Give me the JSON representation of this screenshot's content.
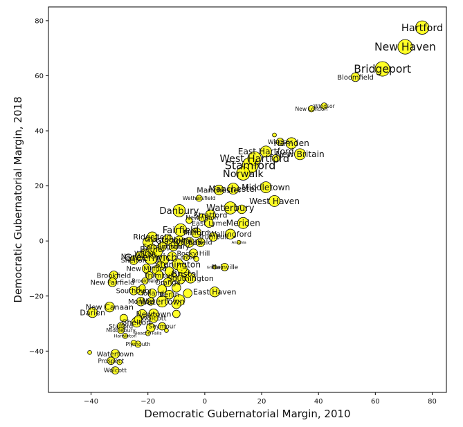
{
  "chart_data": {
    "type": "scatter",
    "title": "",
    "xlabel": "Democratic Gubernatorial Margin, 2010",
    "ylabel": "Democratic Gubernatorial Margin, 2018",
    "xlim": [
      -55,
      85
    ],
    "ylim": [
      -55,
      85
    ],
    "xticks": [
      -40,
      -20,
      0,
      20,
      40,
      60,
      80
    ],
    "yticks": [
      -40,
      -20,
      0,
      20,
      40,
      60,
      80
    ],
    "grid": false,
    "marker_color": "#ffff00",
    "edge_color": "#000000",
    "points": [
      {
        "x": 76.5,
        "y": 77.5,
        "size": 10,
        "label": "Hartford"
      },
      {
        "x": 70.5,
        "y": 70.5,
        "size": 11,
        "label": "New Haven"
      },
      {
        "x": 62.5,
        "y": 62.5,
        "size": 11,
        "label": "Bridgeport"
      },
      {
        "x": 53,
        "y": 59.5,
        "size": 6,
        "label": "Bloomfield"
      },
      {
        "x": 42,
        "y": 49,
        "size": 4,
        "label": "Windsor"
      },
      {
        "x": 37.5,
        "y": 48,
        "size": 4,
        "label": "New London"
      },
      {
        "x": 24.5,
        "y": 38.5,
        "size": 2,
        "label": ""
      },
      {
        "x": 30.5,
        "y": 35.5,
        "size": 8,
        "label": "Hamden"
      },
      {
        "x": 26.5,
        "y": 36,
        "size": 5,
        "label": "Windsor"
      },
      {
        "x": 33.5,
        "y": 31.5,
        "size": 8,
        "label": "New Britain"
      },
      {
        "x": 21.5,
        "y": 32.5,
        "size": 8,
        "label": "East Hartford"
      },
      {
        "x": 17.5,
        "y": 30,
        "size": 10,
        "label": "West Hartford"
      },
      {
        "x": 25,
        "y": 30,
        "size": 5,
        "label": ""
      },
      {
        "x": 16,
        "y": 27.5,
        "size": 12,
        "label": "Stamford"
      },
      {
        "x": 13.5,
        "y": 24.5,
        "size": 10,
        "label": "Norwalk"
      },
      {
        "x": 10,
        "y": 19,
        "size": 8,
        "label": "Manchester"
      },
      {
        "x": 5,
        "y": 18.5,
        "size": 7,
        "label": "Manchester"
      },
      {
        "x": 21.5,
        "y": 19.5,
        "size": 8,
        "label": "Middletown"
      },
      {
        "x": 24.5,
        "y": 14.5,
        "size": 8,
        "label": "West Haven"
      },
      {
        "x": -2,
        "y": 15.5,
        "size": 4,
        "label": "Wethersfield"
      },
      {
        "x": -9,
        "y": 11,
        "size": 9,
        "label": "Danbury"
      },
      {
        "x": 9,
        "y": 12,
        "size": 9,
        "label": "Waterbury"
      },
      {
        "x": 13,
        "y": 11.5,
        "size": 6,
        "label": ""
      },
      {
        "x": 2,
        "y": 9.5,
        "size": 7,
        "label": "Stratford"
      },
      {
        "x": -1,
        "y": 8.5,
        "size": 5,
        "label": "Newington"
      },
      {
        "x": 13.5,
        "y": 6.5,
        "size": 8,
        "label": "Meriden"
      },
      {
        "x": 1.5,
        "y": 6.5,
        "size": 6,
        "label": "East Lyme"
      },
      {
        "x": -5.5,
        "y": 7.5,
        "size": 4,
        "label": ""
      },
      {
        "x": -8.5,
        "y": 4,
        "size": 9,
        "label": "Fairfield"
      },
      {
        "x": -3,
        "y": 3,
        "size": 7,
        "label": "Milford"
      },
      {
        "x": 9,
        "y": 2.5,
        "size": 7,
        "label": "Wallingford"
      },
      {
        "x": 12,
        "y": -0.5,
        "size": 2,
        "label": "Ansonia"
      },
      {
        "x": 3,
        "y": 1.5,
        "size": 6,
        "label": "Trumbull"
      },
      {
        "x": -1.5,
        "y": -0.5,
        "size": 6,
        "label": "Enfield"
      },
      {
        "x": -5.5,
        "y": -0.5,
        "size": 7,
        "label": "Vernon"
      },
      {
        "x": -9,
        "y": 0,
        "size": 7,
        "label": "Glastonbury"
      },
      {
        "x": -13,
        "y": 0.5,
        "size": 7,
        "label": "Glastonbury"
      },
      {
        "x": -18.5,
        "y": 1.5,
        "size": 7,
        "label": "Ridgefield"
      },
      {
        "x": -20,
        "y": -0.5,
        "size": 7,
        "label": ""
      },
      {
        "x": -15,
        "y": -2,
        "size": 6,
        "label": "Farmington"
      },
      {
        "x": -11,
        "y": -2,
        "size": 6,
        "label": "Simsbury"
      },
      {
        "x": -18.5,
        "y": -3,
        "size": 7,
        "label": "Bethel"
      },
      {
        "x": -21,
        "y": -4.5,
        "size": 6,
        "label": "Wilton"
      },
      {
        "x": -16.5,
        "y": -4,
        "size": 6,
        "label": ""
      },
      {
        "x": -19,
        "y": -6,
        "size": 10,
        "label": "Greenwich"
      },
      {
        "x": -23,
        "y": -5.5,
        "size": 6,
        "label": "Naugatuck"
      },
      {
        "x": -25,
        "y": -7,
        "size": 6,
        "label": "Shelton"
      },
      {
        "x": -14.5,
        "y": -7,
        "size": 7,
        "label": ""
      },
      {
        "x": -11.5,
        "y": -5.5,
        "size": 6,
        "label": ""
      },
      {
        "x": -4,
        "y": -4.5,
        "size": 6,
        "label": "Rocky Hill"
      },
      {
        "x": -6.5,
        "y": -6,
        "size": 4,
        "label": "Canton"
      },
      {
        "x": -3,
        "y": -6.5,
        "size": 3,
        "label": ""
      },
      {
        "x": -9.5,
        "y": -8.5,
        "size": 8,
        "label": "Stonington"
      },
      {
        "x": -8,
        "y": -10,
        "size": 7,
        "label": ""
      },
      {
        "x": -15.5,
        "y": -9,
        "size": 6,
        "label": ""
      },
      {
        "x": -20.5,
        "y": -10,
        "size": 6,
        "label": "New Milford"
      },
      {
        "x": -17,
        "y": -10.5,
        "size": 6,
        "label": ""
      },
      {
        "x": -12.5,
        "y": -11,
        "size": 6,
        "label": ""
      },
      {
        "x": 7,
        "y": -9.5,
        "size": 5,
        "label": "Plainville"
      },
      {
        "x": 3.5,
        "y": -9.5,
        "size": 2,
        "label": "Griswold"
      },
      {
        "x": -7,
        "y": -12,
        "size": 8,
        "label": "Bristol"
      },
      {
        "x": -11.5,
        "y": -13,
        "size": 7,
        "label": ""
      },
      {
        "x": -16,
        "y": -12.5,
        "size": 6,
        "label": "Trumbull"
      },
      {
        "x": -19.5,
        "y": -12.5,
        "size": 5,
        "label": ""
      },
      {
        "x": -5,
        "y": -13.5,
        "size": 7,
        "label": "Southington"
      },
      {
        "x": -8.5,
        "y": -14,
        "size": 6,
        "label": ""
      },
      {
        "x": -13,
        "y": -15,
        "size": 6,
        "label": "Orange"
      },
      {
        "x": -21,
        "y": -14.5,
        "size": 4,
        "label": "Brookfield"
      },
      {
        "x": -32,
        "y": -12.5,
        "size": 6,
        "label": "Brookfield"
      },
      {
        "x": -32.5,
        "y": -15,
        "size": 6,
        "label": "New Fairfield"
      },
      {
        "x": -10,
        "y": -17,
        "size": 6,
        "label": ""
      },
      {
        "x": -15,
        "y": -17.5,
        "size": 6,
        "label": ""
      },
      {
        "x": -22,
        "y": -17,
        "size": 4,
        "label": ""
      },
      {
        "x": 3.5,
        "y": -18.5,
        "size": 7,
        "label": "East Haven"
      },
      {
        "x": -6,
        "y": -19,
        "size": 6,
        "label": ""
      },
      {
        "x": -12.5,
        "y": -19.5,
        "size": 6,
        "label": "Berlin"
      },
      {
        "x": -18.5,
        "y": -19,
        "size": 6,
        "label": "Tolland"
      },
      {
        "x": -25,
        "y": -18,
        "size": 6,
        "label": "Southbury"
      },
      {
        "x": -22.5,
        "y": -18,
        "size": 6,
        "label": ""
      },
      {
        "x": -9,
        "y": -21.5,
        "size": 8,
        "label": ""
      },
      {
        "x": -15,
        "y": -22,
        "size": 8,
        "label": "Watertown"
      },
      {
        "x": -22.5,
        "y": -22,
        "size": 6,
        "label": "Monroe"
      },
      {
        "x": -19,
        "y": -22,
        "size": 5,
        "label": ""
      },
      {
        "x": -10,
        "y": -23,
        "size": 6,
        "label": ""
      },
      {
        "x": -33.5,
        "y": -24,
        "size": 7,
        "label": "New Canaan"
      },
      {
        "x": -39.5,
        "y": -26,
        "size": 7,
        "label": "Darien"
      },
      {
        "x": -18,
        "y": -26.5,
        "size": 7,
        "label": "Newtown"
      },
      {
        "x": -22,
        "y": -26.5,
        "size": 6,
        "label": ""
      },
      {
        "x": -10,
        "y": -26.5,
        "size": 5,
        "label": ""
      },
      {
        "x": -18,
        "y": -28,
        "size": 6,
        "label": "Wolcott"
      },
      {
        "x": -23.5,
        "y": -28.5,
        "size": 5,
        "label": ""
      },
      {
        "x": -28.5,
        "y": -28,
        "size": 5,
        "label": ""
      },
      {
        "x": -24,
        "y": -29.5,
        "size": 7,
        "label": "Shelton"
      },
      {
        "x": -19,
        "y": -31.5,
        "size": 6,
        "label": ""
      },
      {
        "x": -15,
        "y": -31,
        "size": 5,
        "label": "Seymour"
      },
      {
        "x": -29.5,
        "y": -31,
        "size": 5,
        "label": "Stafford"
      },
      {
        "x": -29.5,
        "y": -32.5,
        "size": 4,
        "label": "Middlebury"
      },
      {
        "x": -13.5,
        "y": -32.5,
        "size": 2,
        "label": ""
      },
      {
        "x": -20,
        "y": -33.5,
        "size": 3,
        "label": "Beacon Falls"
      },
      {
        "x": -28,
        "y": -34.5,
        "size": 3,
        "label": "Harwinton"
      },
      {
        "x": -25,
        "y": -37,
        "size": 3,
        "label": ""
      },
      {
        "x": -23.5,
        "y": -37.5,
        "size": 4,
        "label": "Plymouth"
      },
      {
        "x": -40.5,
        "y": -40.5,
        "size": 2,
        "label": ""
      },
      {
        "x": -31.5,
        "y": -41,
        "size": 6,
        "label": "Watertown"
      },
      {
        "x": -33,
        "y": -43.5,
        "size": 5,
        "label": "Prospect"
      },
      {
        "x": -30,
        "y": -44,
        "size": 3,
        "label": ""
      },
      {
        "x": -31.5,
        "y": -47,
        "size": 5,
        "label": "Wolcott"
      }
    ]
  }
}
